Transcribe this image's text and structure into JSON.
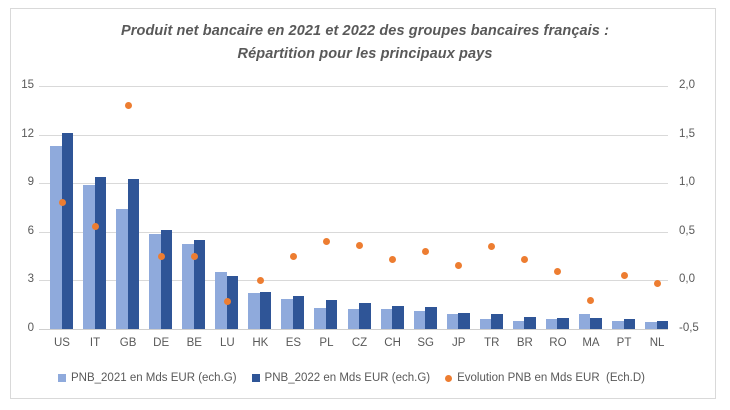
{
  "chart_data": {
    "type": "bar",
    "title_line1": "Produit net bancaire en 2021 et 2022 des groupes bancaires français :",
    "title_line2": "Répartition pour les principaux pays",
    "categories": [
      "US",
      "IT",
      "GB",
      "DE",
      "BE",
      "LU",
      "HK",
      "ES",
      "PL",
      "CZ",
      "CH",
      "SG",
      "JP",
      "TR",
      "BR",
      "RO",
      "MA",
      "PT",
      "NL"
    ],
    "series": [
      {
        "name": "PNB_2021 en Mds EUR (ech.G)",
        "type": "bar",
        "axis": "left",
        "color": "#8faadc",
        "values": [
          11.3,
          8.9,
          7.4,
          5.85,
          5.25,
          3.5,
          2.25,
          1.85,
          1.3,
          1.25,
          1.25,
          1.1,
          0.9,
          0.6,
          0.5,
          0.6,
          0.9,
          0.5,
          0.45
        ]
      },
      {
        "name": "PNB_2022 en Mds EUR (ech.G)",
        "type": "bar",
        "axis": "left",
        "color": "#2f5597",
        "values": [
          12.1,
          9.4,
          9.25,
          6.1,
          5.5,
          3.3,
          2.3,
          2.05,
          1.8,
          1.6,
          1.45,
          1.35,
          1.0,
          0.95,
          0.75,
          0.7,
          0.7,
          0.6,
          0.5
        ]
      },
      {
        "name": "Evolution PNB en Mds EUR  (Ech.D)",
        "type": "scatter",
        "axis": "right",
        "color": "#ed7d31",
        "values": [
          0.8,
          0.55,
          1.8,
          0.25,
          0.25,
          -0.22,
          0.0,
          0.25,
          0.4,
          0.36,
          0.21,
          0.3,
          0.15,
          0.35,
          0.21,
          0.09,
          -0.21,
          0.05,
          -0.03
        ]
      }
    ],
    "left_axis": {
      "min": 0,
      "max": 15,
      "ticks_top_to_bottom": [
        "15",
        "12",
        "9",
        "6",
        "3",
        "0"
      ]
    },
    "right_axis": {
      "min": -0.5,
      "max": 2.0,
      "ticks_top_to_bottom": [
        "2,0",
        "1,5",
        "1,0",
        "0,5",
        "0,0",
        "-0,5"
      ]
    },
    "grid": true,
    "legend_position": "bottom"
  },
  "colors": {
    "pnb_2021": "#8faadc",
    "pnb_2022": "#2f5597",
    "evolution": "#ed7d31",
    "text": "#595959",
    "gridline": "#d9d9d9",
    "frame_border": "#d9d9d9",
    "background": "#ffffff"
  }
}
